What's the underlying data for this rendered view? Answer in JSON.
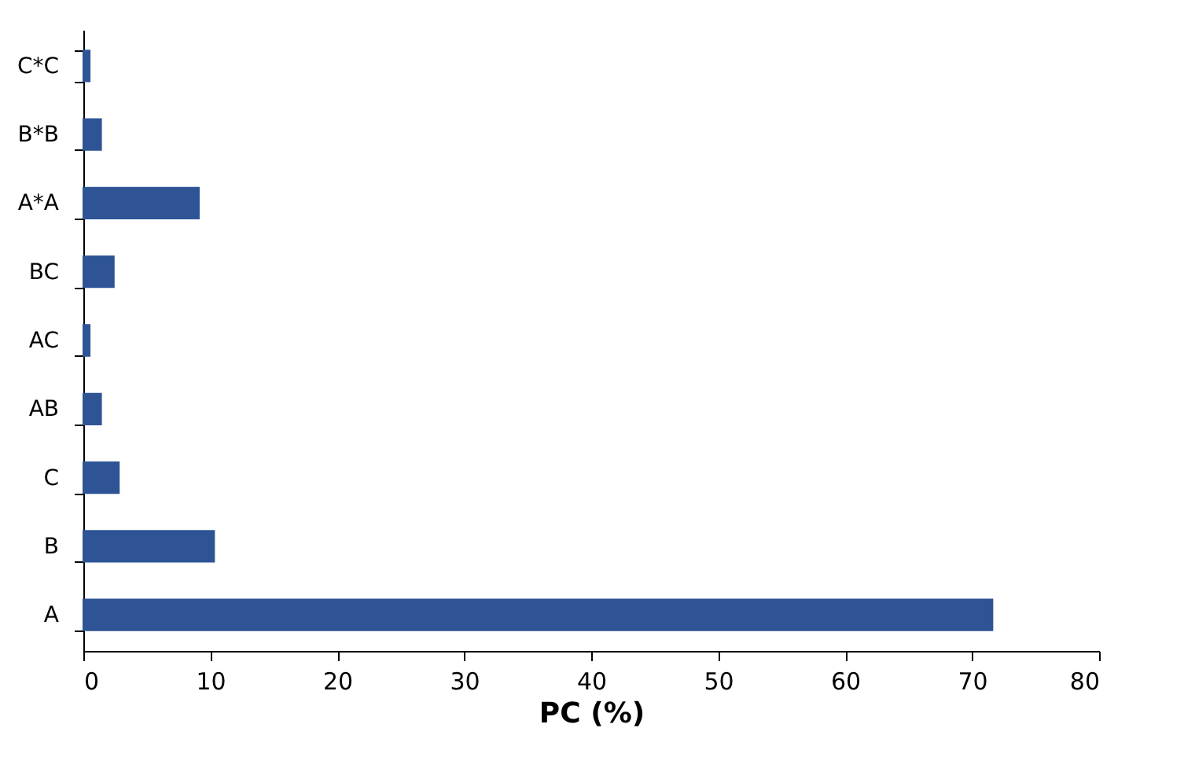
{
  "chart_data": {
    "type": "bar",
    "orientation": "horizontal",
    "xlabel": "PC (%)",
    "categories": [
      "C*C",
      "B*B",
      "A*A",
      "BC",
      "AC",
      "AB",
      "C",
      "B",
      "A"
    ],
    "values": [
      0.5,
      1.4,
      9.1,
      2.4,
      0.5,
      1.4,
      2.8,
      10.3,
      71.6
    ],
    "color": "#2e5496",
    "xlim": [
      0,
      80
    ],
    "xticks": [
      0,
      10,
      20,
      30,
      40,
      50,
      60,
      70,
      80
    ],
    "grid": false
  }
}
